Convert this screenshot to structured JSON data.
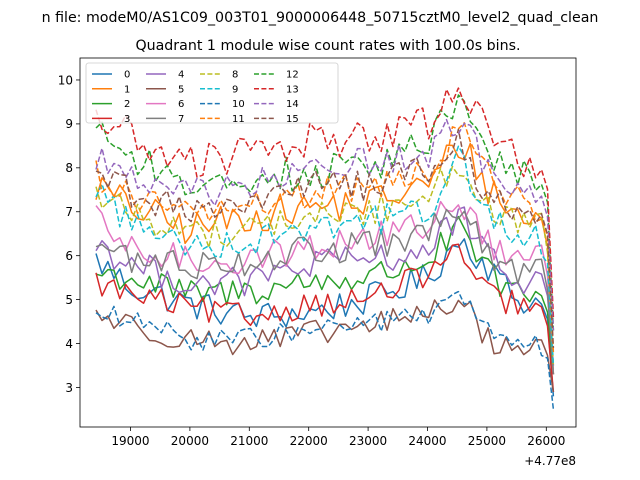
{
  "chart_data": {
    "type": "line",
    "suptitle": "n file: modeM0/AS1C09_003T01_9000006448_50715cztM0_level2_quad_clean",
    "title": "Quadrant 1 module wise count rates with 100.0s bins.",
    "xlabel": "",
    "ylabel": "",
    "x_offset_label": "+4.77e8",
    "xlim": [
      18150,
      26500
    ],
    "ylim": [
      2.1,
      10.5
    ],
    "x_ticks": [
      19000,
      20000,
      21000,
      22000,
      23000,
      24000,
      25000,
      26000
    ],
    "x_tick_labels": [
      "19000",
      "20000",
      "21000",
      "22000",
      "23000",
      "24000",
      "25000",
      "26000"
    ],
    "y_ticks": [
      3,
      4,
      5,
      6,
      7,
      8,
      9,
      10
    ],
    "y_tick_labels": [
      "3",
      "4",
      "5",
      "6",
      "7",
      "8",
      "9",
      "10"
    ],
    "x_start": 18420,
    "x_step": 100,
    "x_end": 26120,
    "legend_location": "upper-left",
    "legend_columns": 4,
    "anchors_x": [
      18420,
      19000,
      20000,
      21000,
      22000,
      23000,
      24000,
      24550,
      25000,
      25500,
      26000,
      26120
    ],
    "series": [
      {
        "name": "0",
        "color": "#1f77b4",
        "dash": "solid",
        "anchors_y": [
          5.9,
          5.3,
          4.9,
          4.6,
          4.7,
          5.0,
          5.5,
          6.4,
          5.8,
          5.0,
          4.9,
          2.8
        ],
        "noise": 0.35
      },
      {
        "name": "1",
        "color": "#ff7f0e",
        "dash": "solid",
        "anchors_y": [
          7.6,
          7.1,
          6.6,
          6.9,
          7.1,
          7.2,
          7.6,
          8.6,
          7.6,
          6.9,
          6.8,
          3.3
        ],
        "noise": 0.4
      },
      {
        "name": "2",
        "color": "#2ca02c",
        "dash": "solid",
        "anchors_y": [
          5.6,
          5.5,
          5.1,
          5.2,
          5.4,
          5.5,
          5.9,
          6.6,
          5.6,
          5.1,
          5.0,
          3.3
        ],
        "noise": 0.35
      },
      {
        "name": "3",
        "color": "#d62728",
        "dash": "solid",
        "anchors_y": [
          5.4,
          5.1,
          4.8,
          4.6,
          4.9,
          5.0,
          5.6,
          6.1,
          5.1,
          4.9,
          4.7,
          2.9
        ],
        "noise": 0.3
      },
      {
        "name": "4",
        "color": "#9467bd",
        "dash": "solid",
        "anchors_y": [
          6.3,
          5.8,
          5.4,
          5.4,
          5.8,
          5.9,
          6.1,
          7.0,
          5.9,
          5.5,
          5.4,
          3.5
        ],
        "noise": 0.35
      },
      {
        "name": "5",
        "color": "#8c564b",
        "dash": "solid",
        "anchors_y": [
          4.7,
          4.4,
          4.1,
          4.0,
          4.2,
          4.4,
          4.7,
          5.0,
          4.1,
          3.9,
          3.9,
          2.9
        ],
        "noise": 0.3
      },
      {
        "name": "6",
        "color": "#e377c2",
        "dash": "solid",
        "anchors_y": [
          6.8,
          6.1,
          5.9,
          5.9,
          6.2,
          6.4,
          6.7,
          7.3,
          6.3,
          5.9,
          6.0,
          3.3
        ],
        "noise": 0.35
      },
      {
        "name": "7",
        "color": "#7f7f7f",
        "dash": "solid",
        "anchors_y": [
          6.3,
          5.9,
          5.8,
          5.9,
          6.1,
          6.2,
          6.5,
          7.1,
          6.0,
          5.7,
          5.6,
          3.3
        ],
        "noise": 0.35
      },
      {
        "name": "8",
        "color": "#bcbd22",
        "dash": "dashed",
        "anchors_y": [
          7.4,
          7.0,
          6.5,
          6.6,
          6.9,
          7.0,
          7.4,
          8.2,
          7.1,
          6.7,
          6.6,
          3.5
        ],
        "noise": 0.35
      },
      {
        "name": "9",
        "color": "#17becf",
        "dash": "dashed",
        "anchors_y": [
          7.6,
          6.7,
          6.3,
          6.3,
          6.7,
          6.8,
          7.0,
          8.3,
          6.9,
          6.5,
          6.3,
          3.5
        ],
        "noise": 0.35
      },
      {
        "name": "10",
        "color": "#1f77b4",
        "dash": "dashed",
        "anchors_y": [
          4.7,
          4.5,
          4.1,
          4.1,
          4.3,
          4.5,
          4.6,
          5.1,
          4.3,
          4.0,
          3.9,
          2.5
        ],
        "noise": 0.25
      },
      {
        "name": "11",
        "color": "#ff7f0e",
        "dash": "dashed",
        "anchors_y": [
          7.9,
          7.3,
          7.0,
          7.1,
          7.4,
          7.6,
          7.9,
          8.9,
          7.9,
          7.3,
          7.0,
          3.8
        ],
        "noise": 0.35
      },
      {
        "name": "12",
        "color": "#2ca02c",
        "dash": "dashed",
        "anchors_y": [
          9.1,
          8.2,
          7.6,
          7.8,
          7.9,
          8.0,
          8.6,
          9.8,
          8.1,
          7.9,
          7.8,
          4.3
        ],
        "noise": 0.4
      },
      {
        "name": "13",
        "color": "#d62728",
        "dash": "dashed",
        "anchors_y": [
          9.2,
          8.7,
          8.1,
          8.3,
          8.6,
          8.7,
          9.0,
          10.1,
          8.7,
          8.2,
          8.1,
          4.6
        ],
        "noise": 0.45
      },
      {
        "name": "14",
        "color": "#9467bd",
        "dash": "dashed",
        "anchors_y": [
          8.3,
          7.7,
          7.4,
          7.6,
          7.9,
          8.2,
          8.3,
          9.1,
          8.0,
          7.6,
          7.4,
          4.3
        ],
        "noise": 0.35
      },
      {
        "name": "15",
        "color": "#8c564b",
        "dash": "dashed",
        "anchors_y": [
          8.0,
          7.4,
          7.0,
          7.2,
          7.6,
          7.6,
          8.0,
          8.6,
          7.3,
          6.9,
          7.0,
          3.9
        ],
        "noise": 0.35
      }
    ]
  }
}
